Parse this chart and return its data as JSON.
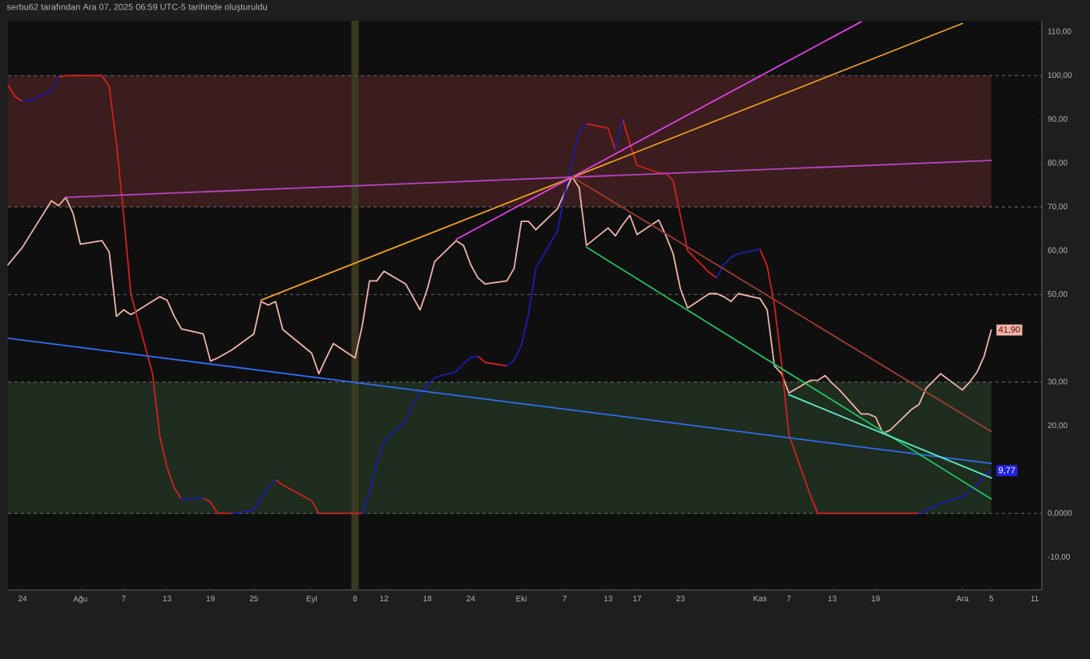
{
  "chart_data": {
    "type": "line",
    "title": "serbu62 tarafından Ara 07, 2025 06:59 UTC-5 tarihinde oluşturuldu",
    "xlim": [
      "2025-07-22",
      "2025-12-12"
    ],
    "xticks": [
      {
        "value": "2025-07-24",
        "label": "24"
      },
      {
        "value": "2025-08-01",
        "label": "Ağu"
      },
      {
        "value": "2025-08-07",
        "label": "7"
      },
      {
        "value": "2025-08-13",
        "label": "13"
      },
      {
        "value": "2025-08-19",
        "label": "19"
      },
      {
        "value": "2025-08-25",
        "label": "25"
      },
      {
        "value": "2025-09-02",
        "label": "Eyl"
      },
      {
        "value": "2025-09-08",
        "label": "8"
      },
      {
        "value": "2025-09-12",
        "label": "12"
      },
      {
        "value": "2025-09-18",
        "label": "18"
      },
      {
        "value": "2025-09-24",
        "label": "24"
      },
      {
        "value": "2025-10-01",
        "label": "Eki"
      },
      {
        "value": "2025-10-07",
        "label": "7"
      },
      {
        "value": "2025-10-13",
        "label": "13"
      },
      {
        "value": "2025-10-17",
        "label": "17"
      },
      {
        "value": "2025-10-23",
        "label": "23"
      },
      {
        "value": "2025-11-03",
        "label": "Kas"
      },
      {
        "value": "2025-11-07",
        "label": "7"
      },
      {
        "value": "2025-11-13",
        "label": "13"
      },
      {
        "value": "2025-11-19",
        "label": "19"
      },
      {
        "value": "2025-12-01",
        "label": "Ara"
      },
      {
        "value": "2025-12-05",
        "label": "5"
      },
      {
        "value": "2025-12-11",
        "label": "11"
      }
    ],
    "ylim": [
      -17.5,
      112.5
    ],
    "yticks": [
      {
        "value": 110,
        "label": "110,00"
      },
      {
        "value": 100,
        "label": "100,00"
      },
      {
        "value": 90,
        "label": "90,00"
      },
      {
        "value": 80,
        "label": "80,00"
      },
      {
        "value": 70,
        "label": "70,00"
      },
      {
        "value": 60,
        "label": "60,00"
      },
      {
        "value": 50,
        "label": "50,00"
      },
      {
        "value": 40,
        "label": null
      },
      {
        "value": 30,
        "label": "30,00"
      },
      {
        "value": 20,
        "label": "20,00"
      },
      {
        "value": 10,
        "label": null
      },
      {
        "value": 0,
        "label": "0,0000"
      },
      {
        "value": -10,
        "label": "-10,00"
      }
    ],
    "bands": [
      {
        "axis": "y",
        "from": 70,
        "to": 100,
        "color": "#3b1d1d"
      },
      {
        "axis": "y",
        "from": 0,
        "to": 30,
        "color": "#1f2d1f"
      },
      {
        "axis": "x",
        "from": "2025-09-07T12:00",
        "to": "2025-09-08T12:00",
        "color": "#3a3820"
      }
    ],
    "ref_lines": [
      {
        "axis": "y",
        "value": 100,
        "color": "#6a6a6a",
        "line_style": "dashed"
      },
      {
        "axis": "y",
        "value": 70,
        "color": "#6a6a6a",
        "line_style": "dashed"
      },
      {
        "axis": "y",
        "value": 50,
        "color": "#6a6a6a",
        "line_style": "dashed"
      },
      {
        "axis": "y",
        "value": 30,
        "color": "#6a6a6a",
        "line_style": "dashed"
      },
      {
        "axis": "y",
        "value": 0,
        "color": "#6a6a6a",
        "line_style": "dashed"
      }
    ],
    "series": [
      {
        "color": "#f0b4aa",
        "x": [
          "2025-07-22",
          "2025-07-24",
          "2025-07-28",
          "2025-07-29",
          "2025-07-30",
          "2025-07-31",
          "2025-08-01",
          "2025-08-04",
          "2025-08-05",
          "2025-08-06",
          "2025-08-07",
          "2025-08-08",
          "2025-08-12",
          "2025-08-13",
          "2025-08-14",
          "2025-08-15",
          "2025-08-18",
          "2025-08-19",
          "2025-08-20",
          "2025-08-22",
          "2025-08-25",
          "2025-08-26",
          "2025-08-27",
          "2025-08-28",
          "2025-08-29",
          "2025-09-02",
          "2025-09-03",
          "2025-09-04",
          "2025-09-05",
          "2025-09-08",
          "2025-09-09",
          "2025-09-10",
          "2025-09-11",
          "2025-09-12",
          "2025-09-15",
          "2025-09-17",
          "2025-09-18",
          "2025-09-19",
          "2025-09-22",
          "2025-09-23",
          "2025-09-24",
          "2025-09-25",
          "2025-09-26",
          "2025-09-29",
          "2025-09-30",
          "2025-10-01",
          "2025-10-02",
          "2025-10-03",
          "2025-10-06",
          "2025-10-07",
          "2025-10-08",
          "2025-10-09",
          "2025-10-10",
          "2025-10-13",
          "2025-10-14",
          "2025-10-15",
          "2025-10-16",
          "2025-10-17",
          "2025-10-20",
          "2025-10-21",
          "2025-10-22",
          "2025-10-23",
          "2025-10-24",
          "2025-10-27",
          "2025-10-28",
          "2025-10-29",
          "2025-10-30",
          "2025-10-31",
          "2025-11-03",
          "2025-11-04",
          "2025-11-05",
          "2025-11-06",
          "2025-11-07",
          "2025-11-10",
          "2025-11-11",
          "2025-11-12",
          "2025-11-13",
          "2025-11-14",
          "2025-11-17",
          "2025-11-18",
          "2025-11-19",
          "2025-11-20",
          "2025-11-21",
          "2025-11-24",
          "2025-11-25",
          "2025-11-26",
          "2025-11-28",
          "2025-12-01",
          "2025-12-02",
          "2025-12-03",
          "2025-12-04",
          "2025-12-05"
        ],
        "values": [
          56.8,
          60.8,
          71.4,
          70.3,
          72.2,
          68.5,
          61.5,
          62.3,
          59.7,
          45,
          46.5,
          45.4,
          49.5,
          48.7,
          45,
          42.1,
          41,
          34.8,
          35.5,
          37.4,
          41,
          48.4,
          47.6,
          48.4,
          42,
          36.6,
          31.9,
          35.5,
          38.8,
          35.5,
          42.9,
          53.1,
          53.1,
          55.3,
          52.4,
          46.5,
          51.3,
          57.5,
          62.3,
          61.2,
          56.8,
          53.8,
          52.4,
          53.1,
          56,
          66.7,
          66.7,
          64.8,
          69.6,
          73.3,
          76.9,
          74.4,
          61.2,
          65.2,
          63.4,
          65.9,
          68.1,
          63.7,
          67,
          63.4,
          59.3,
          51.3,
          46.9,
          50.2,
          50.2,
          49.5,
          48.4,
          50.2,
          49.1,
          46.5,
          33.7,
          31.9,
          27.5,
          30.4,
          30.4,
          31.5,
          29.7,
          28.2,
          22.7,
          22.7,
          22,
          18.3,
          19,
          23.8,
          24.9,
          28.6,
          31.9,
          28.2,
          30,
          32.2,
          35.9,
          41.9
        ],
        "value_labels": [
          null,
          null,
          null,
          null,
          null,
          null,
          null,
          null,
          null,
          null,
          null,
          null,
          null,
          null,
          null,
          null,
          null,
          null,
          null,
          null,
          null,
          null,
          null,
          null,
          null,
          null,
          null,
          null,
          null,
          null,
          null,
          null,
          null,
          null,
          null,
          null,
          null,
          null,
          null,
          null,
          null,
          null,
          null,
          null,
          null,
          null,
          null,
          null,
          null,
          null,
          null,
          null,
          null,
          null,
          null,
          null,
          null,
          null,
          null,
          null,
          null,
          null,
          null,
          null,
          null,
          null,
          null,
          null,
          null,
          null,
          null,
          null,
          null,
          null,
          null,
          null,
          null,
          null,
          null,
          null,
          null,
          null,
          null,
          null,
          null,
          null,
          null,
          null,
          null,
          null,
          null,
          "41,90"
        ]
      },
      {
        "color": "#d42020",
        "x": [
          "2025-07-22",
          "2025-07-23",
          "2025-07-24"
        ],
        "values": [
          97.8,
          95.2,
          94.1
        ]
      },
      {
        "color": "#d42020",
        "x": [
          "2025-07-29",
          "2025-07-30",
          "2025-07-31",
          "2025-08-01",
          "2025-08-04",
          "2025-08-05",
          "2025-08-06",
          "2025-08-07",
          "2025-08-08",
          "2025-08-11",
          "2025-08-12",
          "2025-08-13",
          "2025-08-14",
          "2025-08-15"
        ],
        "values": [
          99.6,
          100,
          100,
          100,
          100,
          97.5,
          84.5,
          68,
          50,
          31.9,
          17.5,
          10.5,
          5.8,
          3.3
        ]
      },
      {
        "color": "#d42020",
        "x": [
          "2025-08-18",
          "2025-08-19",
          "2025-08-20",
          "2025-08-21",
          "2025-08-22"
        ],
        "values": [
          3.5,
          2.6,
          0,
          0,
          0
        ]
      },
      {
        "color": "#d42020",
        "x": [
          "2025-08-28",
          "2025-08-29",
          "2025-09-02",
          "2025-09-03",
          "2025-09-04",
          "2025-09-05",
          "2025-09-08",
          "2025-09-09"
        ],
        "values": [
          7.7,
          6.5,
          2.9,
          0,
          0,
          0,
          0,
          0
        ]
      },
      {
        "color": "#d42020",
        "x": [
          "2025-09-25",
          "2025-09-26",
          "2025-09-29"
        ],
        "values": [
          35.9,
          34.5,
          33.7
        ]
      },
      {
        "color": "#d42020",
        "x": [
          "2025-10-10",
          "2025-10-13",
          "2025-10-14"
        ],
        "values": [
          89,
          88,
          83
        ]
      },
      {
        "color": "#d42020",
        "x": [
          "2025-10-15",
          "2025-10-16",
          "2025-10-17",
          "2025-10-20",
          "2025-10-21",
          "2025-10-22",
          "2025-10-23",
          "2025-10-24",
          "2025-10-27",
          "2025-10-28"
        ],
        "values": [
          90.1,
          84.5,
          79.5,
          77.8,
          77.7,
          76,
          68,
          60,
          55,
          53.8
        ]
      },
      {
        "color": "#d42020",
        "x": [
          "2025-11-03",
          "2025-11-04",
          "2025-11-05",
          "2025-11-06",
          "2025-11-07",
          "2025-11-10",
          "2025-11-11",
          "2025-11-25"
        ],
        "values": [
          60.4,
          56.5,
          47.6,
          34,
          18,
          4,
          0,
          0
        ]
      },
      {
        "color": "#1c1cb0",
        "x": [
          "2025-07-24",
          "2025-07-25",
          "2025-07-28",
          "2025-07-29"
        ],
        "values": [
          94.1,
          94.3,
          96.5,
          99.6
        ]
      },
      {
        "color": "#1c1cb0",
        "x": [
          "2025-08-15",
          "2025-08-18"
        ],
        "values": [
          3.3,
          3.5
        ]
      },
      {
        "color": "#1c1cb0",
        "x": [
          "2025-08-22",
          "2025-08-25",
          "2025-08-26",
          "2025-08-27",
          "2025-08-28"
        ],
        "values": [
          0,
          0.7,
          3.5,
          6,
          7.7
        ]
      },
      {
        "color": "#1c1cb0",
        "x": [
          "2025-09-09",
          "2025-09-10",
          "2025-09-11",
          "2025-09-12",
          "2025-09-15",
          "2025-09-16",
          "2025-09-17",
          "2025-09-18",
          "2025-09-19",
          "2025-09-22",
          "2025-09-23",
          "2025-09-24",
          "2025-09-25"
        ],
        "values": [
          0,
          5,
          11.5,
          16.5,
          21,
          25,
          27.5,
          29.3,
          31,
          32.4,
          34.2,
          35.6,
          35.9
        ]
      },
      {
        "color": "#1c1cb0",
        "x": [
          "2025-09-29",
          "2025-09-30",
          "2025-10-01",
          "2025-10-02",
          "2025-10-03",
          "2025-10-06",
          "2025-10-07",
          "2025-10-08",
          "2025-10-09",
          "2025-10-10"
        ],
        "values": [
          33.7,
          35,
          38.5,
          45.5,
          56,
          64.5,
          73,
          80.5,
          87.2,
          89
        ]
      },
      {
        "color": "#1c1cb0",
        "x": [
          "2025-10-14",
          "2025-10-15"
        ],
        "values": [
          83,
          90.1
        ]
      },
      {
        "color": "#1c1cb0",
        "x": [
          "2025-10-28",
          "2025-10-29",
          "2025-10-30",
          "2025-10-31",
          "2025-11-03"
        ],
        "values": [
          53.8,
          56.8,
          58.5,
          59.3,
          60.4
        ]
      },
      {
        "color": "#1c1cb0",
        "x": [
          "2025-11-25",
          "2025-11-26",
          "2025-11-28",
          "2025-12-01",
          "2025-12-02",
          "2025-12-03",
          "2025-12-04",
          "2025-12-05"
        ],
        "values": [
          0,
          0.7,
          2.3,
          3.8,
          5,
          6.5,
          8.5,
          9.77
        ],
        "value_labels": [
          null,
          null,
          null,
          null,
          null,
          null,
          null,
          "9,77"
        ]
      },
      {
        "color": "#2f6bf0",
        "x": [
          "2025-07-22",
          "2025-12-05"
        ],
        "values": [
          40,
          11.4
        ]
      },
      {
        "color": "#b444c4",
        "x": [
          "2025-07-30",
          "2025-12-05"
        ],
        "values": [
          72.2,
          80.6
        ]
      },
      {
        "color": "#f0a020",
        "x": [
          "2025-08-26",
          "2025-12-01"
        ],
        "values": [
          48.7,
          111.9
        ]
      },
      {
        "color": "#e040e8",
        "x": [
          "2025-09-22",
          "2025-11-17"
        ],
        "values": [
          62.6,
          112.3
        ]
      },
      {
        "color": "#a03c30",
        "x": [
          "2025-10-08",
          "2025-12-05"
        ],
        "values": [
          76.9,
          18.7
        ]
      },
      {
        "color": "#20c060",
        "x": [
          "2025-10-10",
          "2025-12-05"
        ],
        "values": [
          60.8,
          3.3
        ]
      },
      {
        "color": "#60e8c8",
        "x": [
          "2025-11-07",
          "2025-12-05"
        ],
        "values": [
          27.1,
          8.1
        ]
      }
    ]
  }
}
